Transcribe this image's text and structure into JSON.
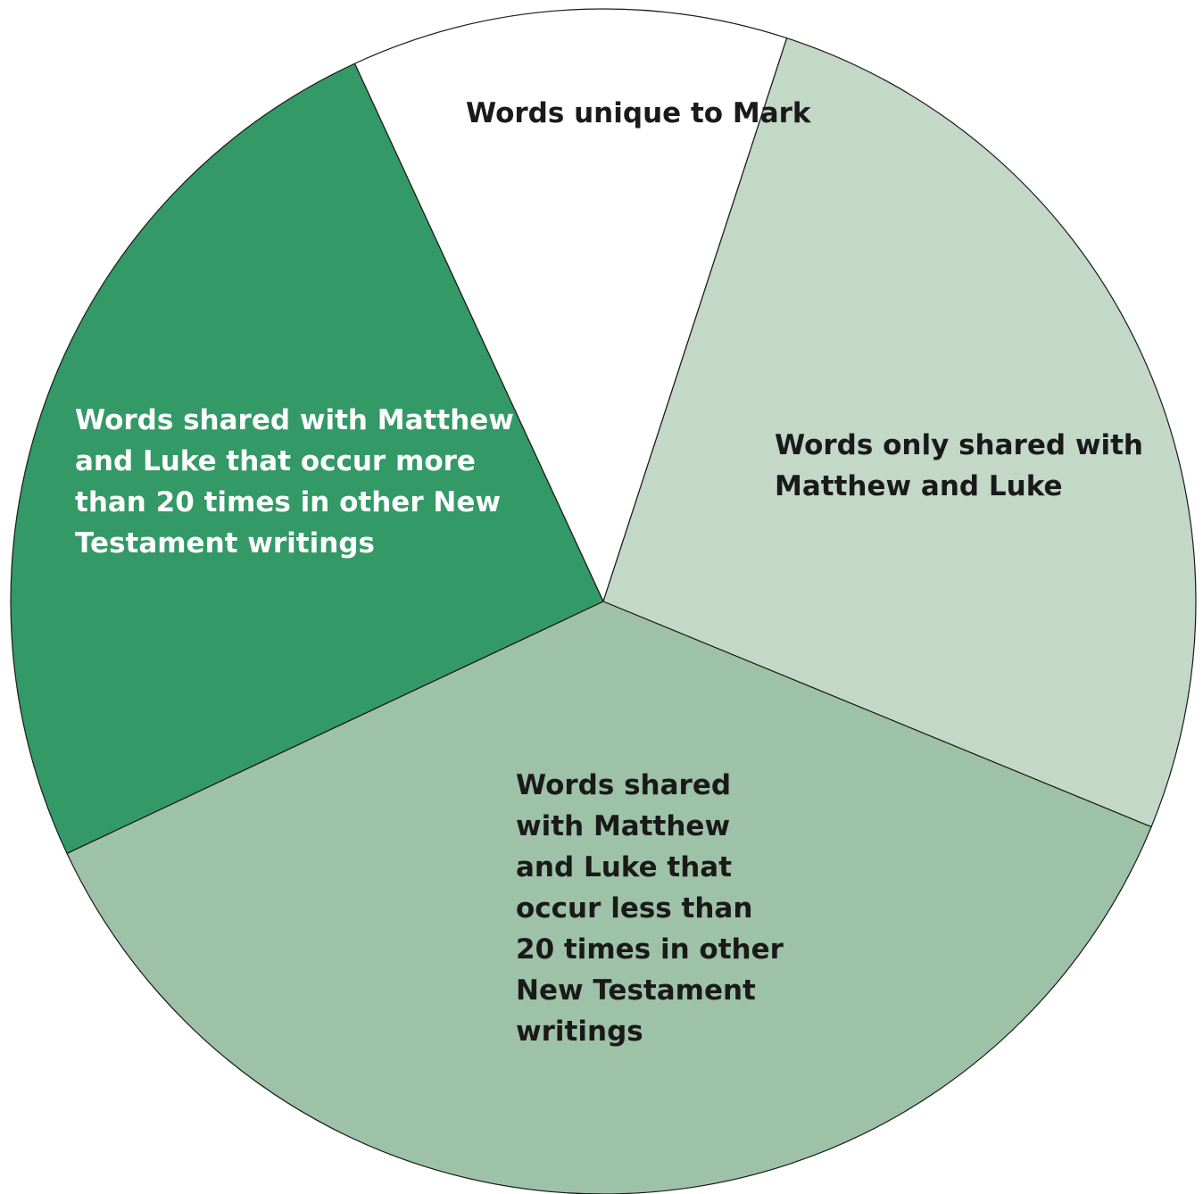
{
  "chart_data": {
    "type": "pie",
    "start_angle_deg": -24.8,
    "direction": "clockwise",
    "slices": [
      {
        "label_lines": [
          "Words unique to Mark"
        ],
        "value": 11.9,
        "color": "#ffffff",
        "text_color": "#1a1a1a"
      },
      {
        "label_lines": [
          "Words only shared with",
          "Matthew and Luke"
        ],
        "value": 26.2,
        "color": "#c3d8c7",
        "text_color": "#1a1a1a"
      },
      {
        "label_lines": [
          "Words shared",
          "with Matthew",
          "and Luke that",
          "occur less than",
          "20 times in other",
          "New Testament",
          "writings"
        ],
        "value": 36.8,
        "color": "#9ec2a7",
        "text_color": "#1a1a1a"
      },
      {
        "label_lines": [
          "Words shared with Matthew",
          "and Luke that occur more",
          "than 20 times in other New",
          "Testament writings"
        ],
        "value": 25.1,
        "color": "#339966",
        "text_color": "#ffffff"
      }
    ]
  }
}
